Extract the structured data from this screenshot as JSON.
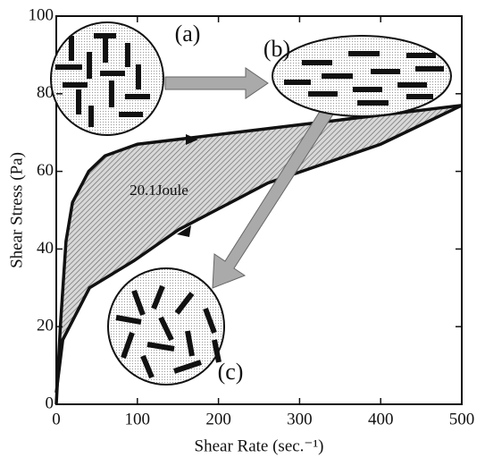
{
  "chart_data": {
    "type": "line",
    "x_label": "Shear Rate  (sec.⁻¹)",
    "y_label": "Shear Stress  (Pa)",
    "annotations": [
      "20.1Joule",
      "(a)",
      "(b)",
      "(c)"
    ],
    "series": [
      {
        "color": "#111111",
        "x": [
          0,
          5,
          12,
          20,
          40,
          60,
          100,
          160,
          300,
          500
        ],
        "values": [
          0,
          20,
          42,
          52,
          60,
          64,
          67,
          68.5,
          72,
          77
        ]
      },
      {
        "color": "#111111",
        "x": [
          500,
          400,
          261,
          151,
          96,
          41,
          8,
          0
        ],
        "values": [
          77,
          67,
          57,
          45,
          37,
          30,
          16.6,
          3
        ]
      }
    ],
    "xlim": [
      0,
      500
    ],
    "xticks": [
      0,
      100,
      200,
      300,
      400,
      500
    ],
    "ylim": [
      0,
      100
    ],
    "yticks": [
      0,
      20,
      40,
      60,
      80,
      100
    ]
  }
}
